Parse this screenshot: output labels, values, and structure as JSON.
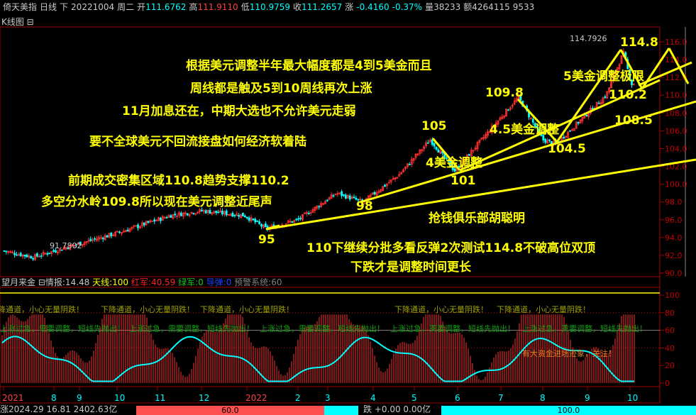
{
  "infobar": {
    "name": "倚天美指",
    "period": "日线",
    "direction": "下",
    "date": "20221004",
    "weekday": "周二",
    "open_label": "开",
    "open": "111.6762",
    "high_label": "高",
    "high": "111.9110",
    "low_label": "低",
    "low": "110.9759",
    "close_label": "收",
    "close": "111.2657",
    "change_label": "涨",
    "change": "-0.4160",
    "change_pct": "-0.37%",
    "volume_label": "量",
    "volume": "38233",
    "amount_label": "额",
    "amount": "4264115",
    "extra": "9533"
  },
  "panel_label": "K线图 ⊟",
  "chart_data": {
    "type": "candlestick",
    "yaxis_ticks": [
      "116.0",
      "114.0",
      "112.0",
      "110.0",
      "108.0",
      "106.0",
      "104.0",
      "102.0",
      "100.0",
      "98.0",
      "96.0",
      "94.0",
      "92.0",
      "90.0"
    ],
    "ylim": [
      90,
      116
    ],
    "high_marker": "114.7926",
    "low_marker": "91.7802",
    "xaxis_ticks": [
      {
        "label": "2021",
        "date": "2021-07-01",
        "year": true
      },
      {
        "label": "8",
        "date": "2021-08-02"
      },
      {
        "label": "9",
        "date": "2021-09-01"
      },
      {
        "label": "10",
        "date": "2021-10-01"
      },
      {
        "label": "11",
        "date": "2021-11-01"
      },
      {
        "label": "12",
        "date": "2021-12-01"
      },
      {
        "label": "2022",
        "date": "2022-01-03",
        "year": true
      },
      {
        "label": "2",
        "date": "2022-02-01"
      },
      {
        "label": "3",
        "date": "2022-03-01"
      },
      {
        "label": "4",
        "date": "2022-04-01"
      },
      {
        "label": "5",
        "date": "2022-05-02"
      },
      {
        "label": "6",
        "date": "2022-06-01"
      },
      {
        "label": "7",
        "date": "2022-07-01"
      },
      {
        "label": "8",
        "date": "2022-08-01"
      },
      {
        "label": "9",
        "date": "2022-09-01"
      },
      {
        "label": "10",
        "date": "2022-10-03"
      }
    ],
    "price_path": [
      [
        "2021-07-01",
        92.5
      ],
      [
        "2021-07-20",
        91.8
      ],
      [
        "2021-08-20",
        93.0
      ],
      [
        "2021-10-01",
        94.5
      ],
      [
        "2021-11-10",
        96.5
      ],
      [
        "2021-12-01",
        97.0
      ],
      [
        "2022-01-01",
        96.5
      ],
      [
        "2022-01-14",
        95.0
      ],
      [
        "2022-02-01",
        96.0
      ],
      [
        "2022-03-07",
        99.0
      ],
      [
        "2022-03-25",
        98.0
      ],
      [
        "2022-04-20",
        101.0
      ],
      [
        "2022-05-13",
        105.0
      ],
      [
        "2022-05-30",
        101.5
      ],
      [
        "2022-07-14",
        109.8
      ],
      [
        "2022-08-01",
        105.0
      ],
      [
        "2022-08-10",
        104.5
      ],
      [
        "2022-09-15",
        110.0
      ],
      [
        "2022-09-28",
        114.79
      ],
      [
        "2022-10-04",
        111.27
      ]
    ],
    "up_color": "#ff3030",
    "down_color": "#00ffff"
  },
  "annotations": {
    "line1": "根据美元调整半年最大幅度都是4到5美金而且",
    "line2": "周线都是触及5到10周线再次上涨",
    "line3": "11月加息还在，中期大选也不允许美元走弱",
    "line4": "要不全球美元不回流接盘如何经济软着陆",
    "line5": "前期成交密集区域110.8趋势支撑110.2",
    "line6": "多空分水岭109.8所以现在美元调整近尾声",
    "line7": "抢钱俱乐部胡聪明",
    "line8": "110下继续分批多看反弹2次测试114.8不破高位双顶",
    "line9": "下跌才是调整时间更长",
    "p95": "95",
    "p98": "98",
    "p101": "101",
    "p105": "105",
    "p104_5": "104.5",
    "p109_8": "109.8",
    "p114_8": "114.8",
    "p110_2": "110.2",
    "p108_5": "108.5",
    "adj4": "4美金调整",
    "adj45": "4.5美金调整",
    "adj5": "5美金调整极限"
  },
  "indicator": {
    "name": "望月来金 ⊟",
    "info_label": "情报:",
    "info": "14.48",
    "tianxian_label": "天线:",
    "tianxian": "100",
    "hongjun_label": "红军:",
    "hongjun": "40.59",
    "lvjun_label": "绿军:",
    "lvjun": "0",
    "daodan_label": "导弹:",
    "daodan": "0",
    "yujing_label": "预警系统:",
    "yujing": "60",
    "yaxis_ticks": [
      "100",
      "80",
      "60",
      "40",
      "20",
      "0"
    ],
    "signal_down": "下降通道，小心无量阴跌！",
    "signal_up": "上涨过急，需要调整，短线先抛出！",
    "signal_fund": "有大资金进场迹象，关注！"
  },
  "bottom": {
    "left_text": "涨2024.29   16.81   2402.63亿",
    "left_bar_value": "60.0",
    "left_fill": 0.846,
    "right_text": "跌 +0.00  0.00亿",
    "right_bar_value": "100.0"
  }
}
